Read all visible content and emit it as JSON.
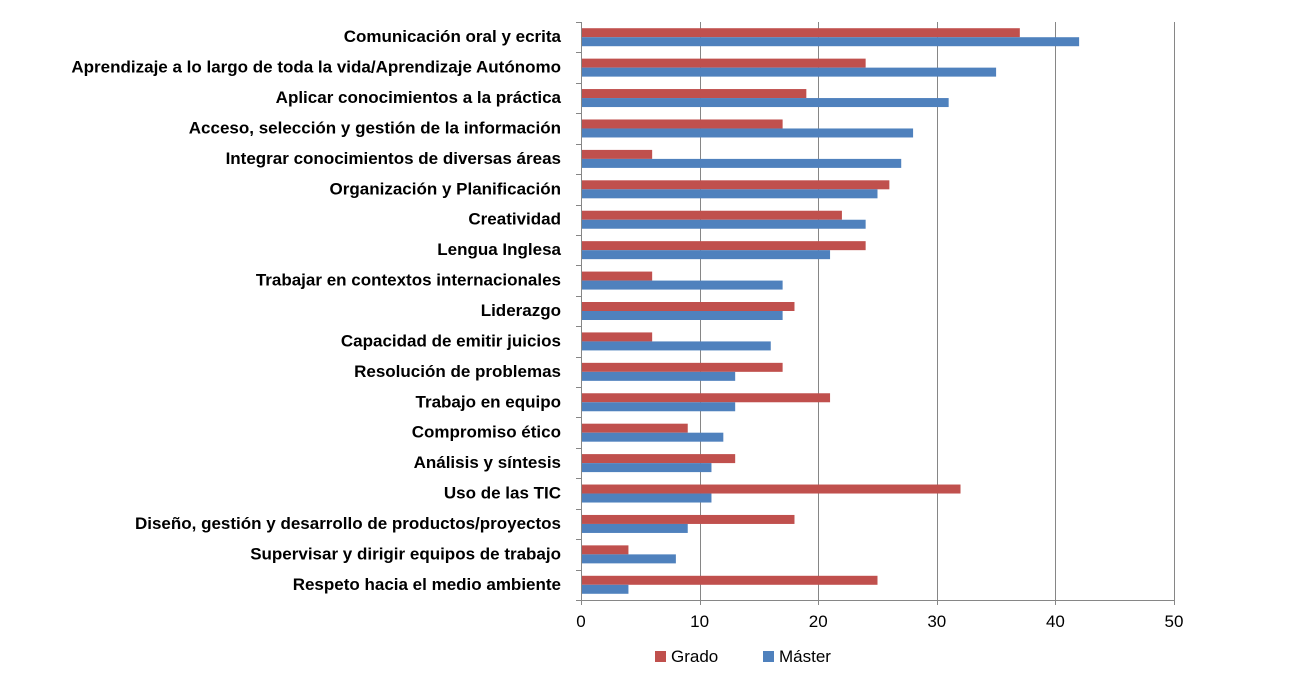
{
  "chart_data": {
    "type": "bar",
    "orientation": "horizontal",
    "title": "",
    "xlabel": "",
    "ylabel": "",
    "xlim": [
      0,
      50
    ],
    "ticks": [
      0,
      10,
      20,
      30,
      40,
      50
    ],
    "grid": "vertical",
    "legend_position": "bottom",
    "categories": [
      "Comunicación oral y ecrita",
      "Aprendizaje a lo largo de toda la vida/Aprendizaje Autónomo",
      "Aplicar conocimientos a la práctica",
      "Acceso, selección y gestión de la información",
      "Integrar conocimientos de diversas áreas",
      "Organización y Planificación",
      "Creatividad",
      "Lengua Inglesa",
      "Trabajar en contextos internacionales",
      "Liderazgo",
      "Capacidad de emitir juicios",
      "Resolución de problemas",
      "Trabajo en equipo",
      "Compromiso ético",
      "Análisis y síntesis",
      "Uso de las TIC",
      "Diseño, gestión y desarrollo de productos/proyectos",
      "Supervisar y dirigir equipos de trabajo",
      "Respeto hacia el medio ambiente"
    ],
    "series": [
      {
        "name": "Grado",
        "color": "#c0504d",
        "values": [
          37,
          24,
          19,
          17,
          6,
          26,
          22,
          24,
          6,
          18,
          6,
          17,
          21,
          9,
          13,
          32,
          18,
          4,
          25
        ]
      },
      {
        "name": "Máster",
        "color": "#4f81bd",
        "values": [
          42,
          35,
          31,
          28,
          27,
          25,
          24,
          21,
          17,
          17,
          16,
          13,
          13,
          12,
          11,
          11,
          9,
          8,
          4
        ]
      }
    ]
  }
}
